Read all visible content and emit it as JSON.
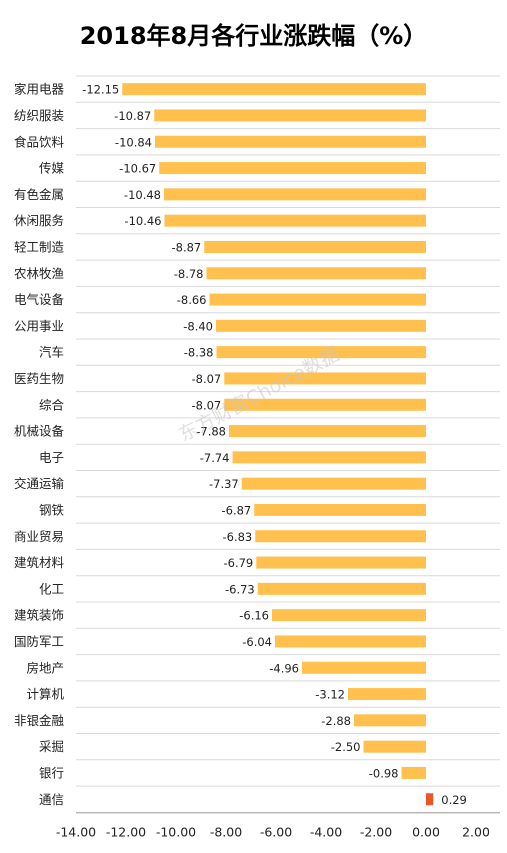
{
  "chart_data": {
    "type": "bar",
    "orientation": "horizontal",
    "title": "2018年8月各行业涨跌幅（%）",
    "categories": [
      "家用电器",
      "纺织服装",
      "食品饮料",
      "传媒",
      "有色金属",
      "休闲服务",
      "轻工制造",
      "农林牧渔",
      "电气设备",
      "公用事业",
      "汽车",
      "医药生物",
      "综合",
      "机械设备",
      "电子",
      "交通运输",
      "钢铁",
      "商业贸易",
      "建筑材料",
      "化工",
      "建筑装饰",
      "国防军工",
      "房地产",
      "计算机",
      "非银金融",
      "采掘",
      "银行",
      "通信"
    ],
    "values": [
      -12.15,
      -10.87,
      -10.84,
      -10.67,
      -10.48,
      -10.46,
      -8.87,
      -8.78,
      -8.66,
      -8.4,
      -8.38,
      -8.07,
      -8.07,
      -7.88,
      -7.74,
      -7.37,
      -6.87,
      -6.83,
      -6.79,
      -6.73,
      -6.16,
      -6.04,
      -4.96,
      -3.12,
      -2.88,
      -2.5,
      -0.98,
      0.29
    ],
    "value_labels": [
      "-12.15",
      "-10.87",
      "-10.84",
      "-10.67",
      "-10.48",
      "-10.46",
      "-8.87",
      "-8.78",
      "-8.66",
      "-8.40",
      "-8.38",
      "-8.07",
      "-8.07",
      "-7.88",
      "-7.74",
      "-7.37",
      "-6.87",
      "-6.83",
      "-6.79",
      "-6.73",
      "-6.16",
      "-6.04",
      "-4.96",
      "-3.12",
      "-2.88",
      "-2.50",
      "-0.98",
      "0.29"
    ],
    "xlim": [
      -14,
      2
    ],
    "xticks": [
      -14,
      -12,
      -10,
      -8,
      -6,
      -4,
      -2,
      0,
      2
    ],
    "xtick_labels": [
      "-14.00",
      "-12.00",
      "-10.00",
      "-8.00",
      "-6.00",
      "-4.00",
      "-2.00",
      "0.00",
      "2.00"
    ],
    "grid": "horizontal lines between categories",
    "legend": "none",
    "colors": {
      "negative": "#FFC04D",
      "positive": "#E8562A",
      "grid": "#D9D9D9",
      "axis": "#A6A6A6"
    },
    "watermark": "东方财富Choice数据"
  }
}
